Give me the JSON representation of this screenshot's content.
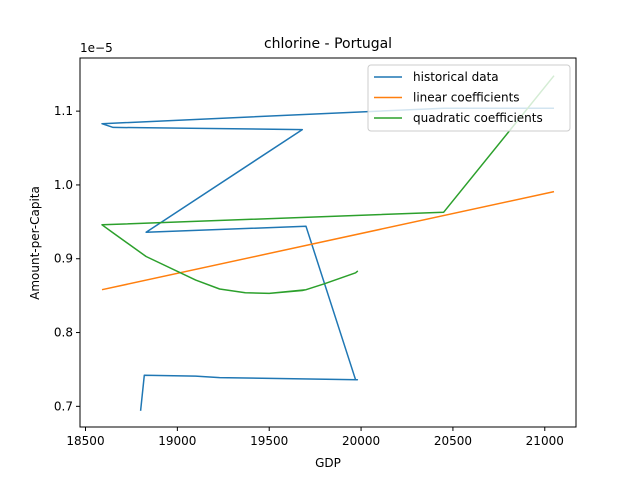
{
  "chart_data": {
    "type": "line",
    "title": "chlorine - Portugal",
    "xlabel": "GDP",
    "ylabel": "Amount-per-Capita",
    "y_offset_label": "1e−5",
    "xlim": [
      18470,
      21170
    ],
    "ylim": [
      0.672,
      1.172
    ],
    "x_ticks": [
      18500,
      19000,
      19500,
      20000,
      20500,
      21000
    ],
    "x_tick_labels": [
      "18500",
      "19000",
      "19500",
      "20000",
      "20500",
      "21000"
    ],
    "y_ticks": [
      0.7,
      0.8,
      0.9,
      1.0,
      1.1
    ],
    "y_tick_labels": [
      "0.7",
      "0.8",
      "0.9",
      "1.0",
      "1.1"
    ],
    "legend_position": "upper right",
    "series": [
      {
        "name": "historical data",
        "color": "#1f77b4",
        "x": [
          18800,
          18820,
          19100,
          19230,
          19980,
          19970,
          19700,
          18830,
          19680,
          18650,
          18590,
          20450,
          21050
        ],
        "y": [
          0.694,
          0.742,
          0.741,
          0.739,
          0.736,
          0.736,
          0.944,
          0.936,
          1.075,
          1.078,
          1.083,
          1.104,
          1.104
        ]
      },
      {
        "name": "linear coefficients",
        "color": "#ff7f0e",
        "x": [
          18590,
          21050
        ],
        "y": [
          0.858,
          0.991
        ]
      },
      {
        "name": "quadratic coefficients",
        "color": "#2ca02c",
        "x": [
          18590,
          18650,
          18830,
          19100,
          19230,
          19370,
          19500,
          19680,
          19700,
          19800,
          19970,
          19980,
          19970,
          19800,
          19700,
          19500,
          19370,
          19230,
          19100,
          18830,
          18650,
          18590,
          20450,
          21050
        ],
        "y": [
          0.946,
          0.935,
          0.903,
          0.871,
          0.859,
          0.854,
          0.853,
          0.857,
          0.858,
          0.866,
          0.881,
          0.883,
          0.881,
          0.866,
          0.858,
          0.853,
          0.854,
          0.859,
          0.871,
          0.903,
          0.935,
          0.946,
          0.963,
          1.148
        ]
      }
    ]
  }
}
